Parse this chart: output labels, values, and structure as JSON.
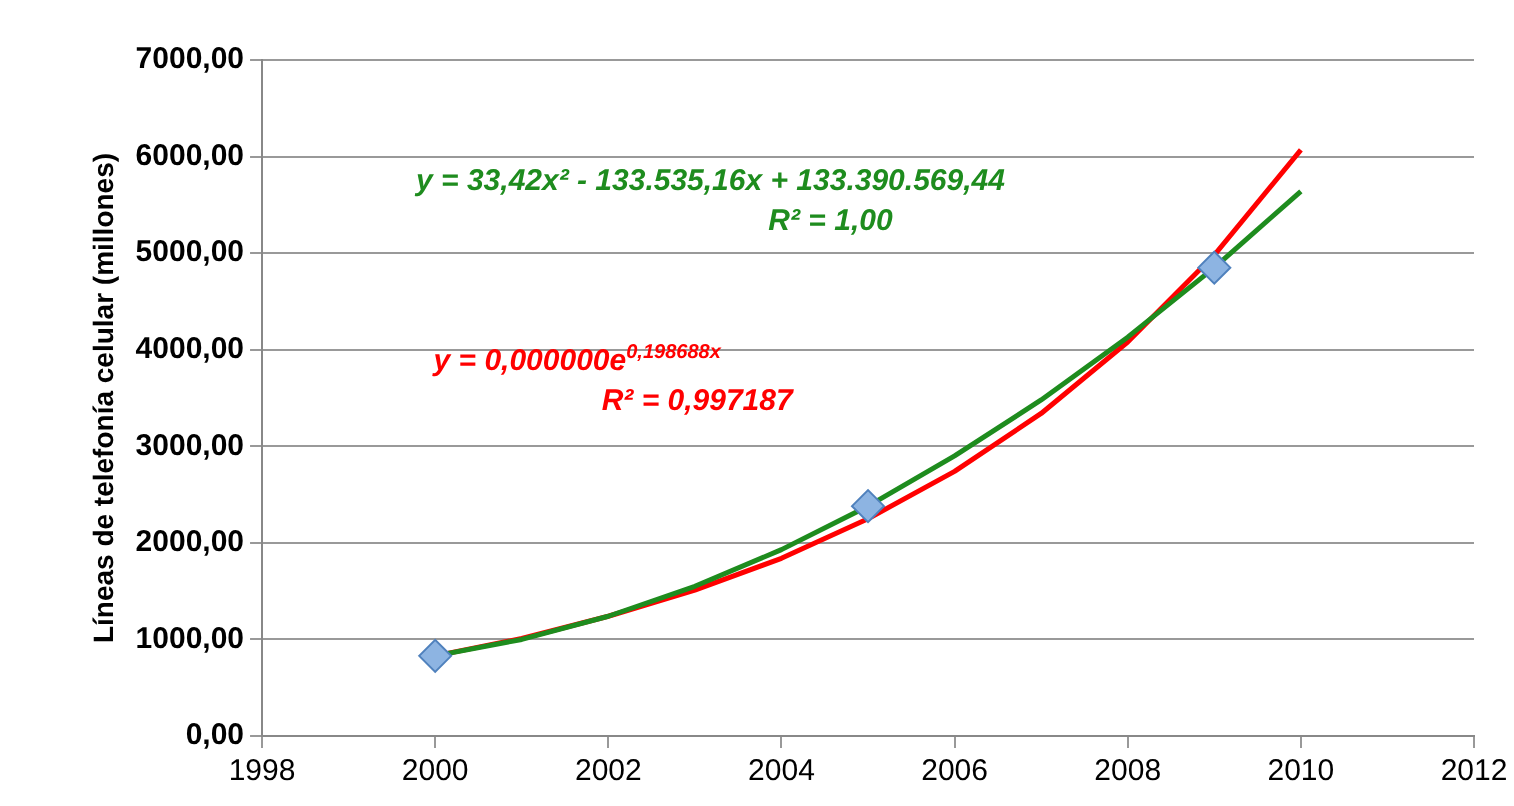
{
  "chart_data": {
    "type": "scatter",
    "ylabel": "Líneas de telefonía celular (millones)",
    "series": [
      {
        "color": "#8db4e2",
        "marker": "diamond",
        "x": [
          2000,
          2005,
          2009
        ],
        "values": [
          830,
          2380,
          4850
        ]
      },
      {
        "type": "line",
        "color": "#1e8c1e",
        "marker": "none",
        "line_style": "solid",
        "x": [
          2000,
          2001,
          2002,
          2003,
          2004,
          2005,
          2006,
          2007,
          2008,
          2009,
          2010
        ],
        "values": [
          830,
          1000,
          1240,
          1550,
          1930,
          2380,
          2900,
          3480,
          4130,
          4850,
          5640
        ]
      },
      {
        "type": "line",
        "color": "#ff0000",
        "marker": "none",
        "line_style": "solid",
        "x": [
          2000,
          2001,
          2002,
          2003,
          2004,
          2005,
          2006,
          2007,
          2008,
          2009,
          2010
        ],
        "values": [
          830,
          1010,
          1240,
          1510,
          1840,
          2250,
          2740,
          3340,
          4080,
          4980,
          6070
        ]
      }
    ],
    "annotations": [
      "y = 33,42x² - 133.535,16x + 133.390.569,44\nR² = 1,00",
      "y = 0,000000e$^{0,198688x}$\nR² = 0,997187"
    ],
    "xlim": [
      1998,
      2012
    ],
    "xticks": [
      1998,
      2000,
      2002,
      2004,
      2006,
      2008,
      2010,
      2012
    ],
    "ylim": [
      0,
      7000
    ],
    "yticks": [
      {
        "value": 0,
        "label": "0,00"
      },
      {
        "value": 1000,
        "label": "1000,00"
      },
      {
        "value": 2000,
        "label": "2000,00"
      },
      {
        "value": 3000,
        "label": "3000,00"
      },
      {
        "value": 4000,
        "label": "4000,00"
      },
      {
        "value": 5000,
        "label": "5000,00"
      },
      {
        "value": 6000,
        "label": "6000,00"
      },
      {
        "value": 7000,
        "label": "7000,00"
      }
    ],
    "grid": "y",
    "legend": false
  }
}
